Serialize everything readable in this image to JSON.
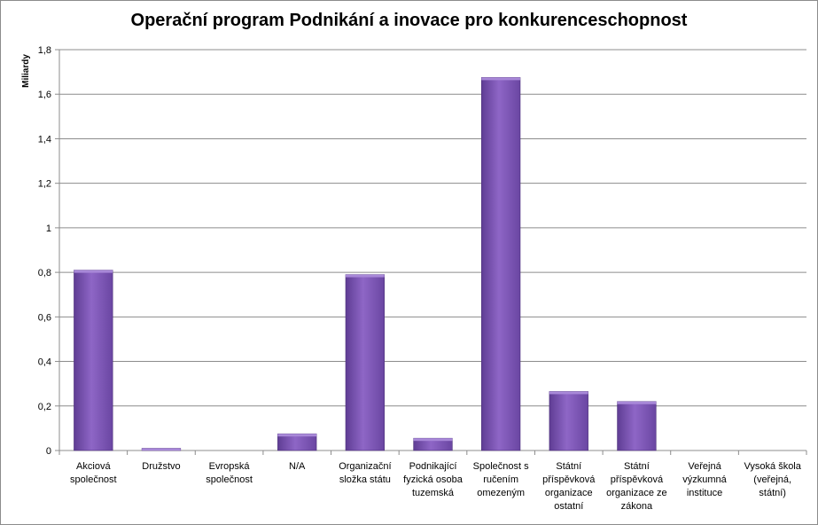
{
  "chart_data": {
    "type": "bar",
    "title": "Operační program Podnikání a inovace pro konkurenceschopnost",
    "ylabel": "Miliardy",
    "xlabel": "",
    "ylim": [
      0,
      1.8
    ],
    "yticks": [
      "0",
      "0,2",
      "0,4",
      "0,6",
      "0,8",
      "1",
      "1,2",
      "1,4",
      "1,6",
      "1,8"
    ],
    "grid": true,
    "bar_color": "#7e57b6",
    "categories": [
      [
        "Akciová",
        "společnost"
      ],
      [
        "Družstvo"
      ],
      [
        "Evropská",
        "společnost"
      ],
      [
        "N/A"
      ],
      [
        "Organizační",
        "složka státu"
      ],
      [
        "Podnikající",
        "fyzická osoba",
        "tuzemská"
      ],
      [
        "Společnost s",
        "ručením",
        "omezeným"
      ],
      [
        "Státní",
        "příspěvková",
        "organizace",
        "ostatní"
      ],
      [
        "Státní",
        "příspěvková",
        "organizace ze",
        "zákona"
      ],
      [
        "Veřejná",
        "výzkumná",
        "instituce"
      ],
      [
        "Vysoká škola",
        "(veřejná,",
        "státní)"
      ]
    ],
    "values": [
      0.81,
      0.01,
      0,
      0.075,
      0.79,
      0.055,
      1.675,
      0.265,
      0.22,
      0,
      0
    ]
  }
}
